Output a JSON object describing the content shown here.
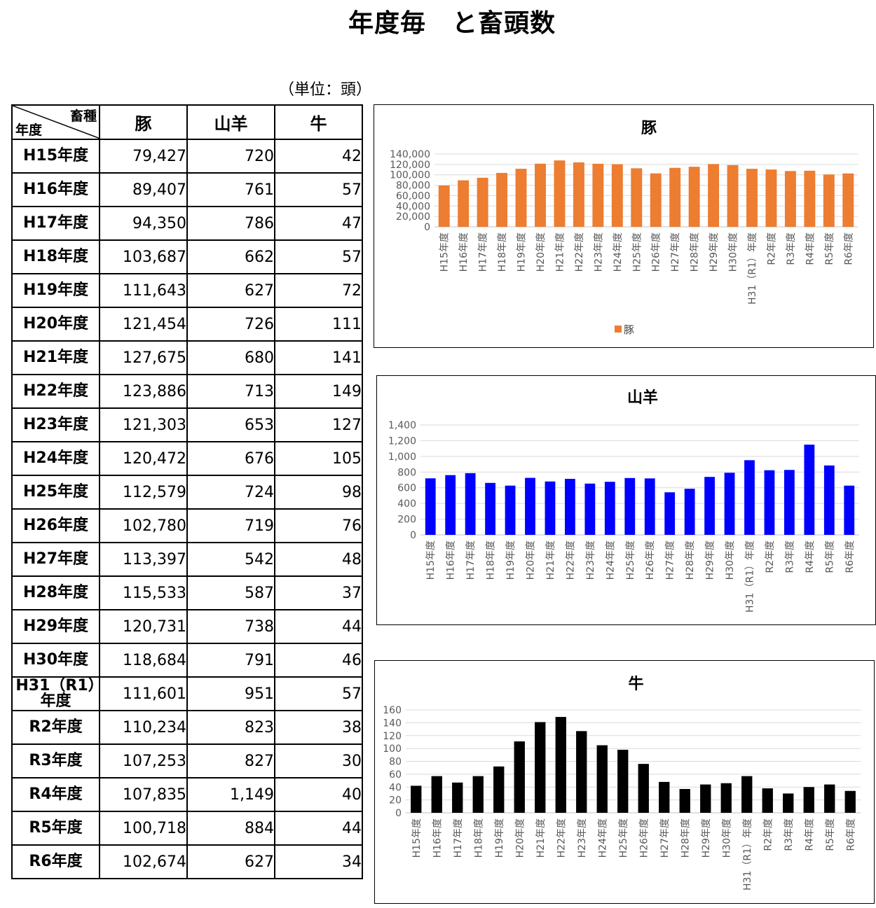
{
  "page": {
    "title": "年度毎　と畜頭数",
    "unit": "（単位：頭）"
  },
  "table": {
    "corner_top": "畜種",
    "corner_bottom": "年度",
    "headers": [
      "豚",
      "山羊",
      "牛"
    ],
    "rows": [
      {
        "year": "H15年度",
        "pig": "79,427",
        "goat": "720",
        "cattle": "42"
      },
      {
        "year": "H16年度",
        "pig": "89,407",
        "goat": "761",
        "cattle": "57"
      },
      {
        "year": "H17年度",
        "pig": "94,350",
        "goat": "786",
        "cattle": "47"
      },
      {
        "year": "H18年度",
        "pig": "103,687",
        "goat": "662",
        "cattle": "57"
      },
      {
        "year": "H19年度",
        "pig": "111,643",
        "goat": "627",
        "cattle": "72"
      },
      {
        "year": "H20年度",
        "pig": "121,454",
        "goat": "726",
        "cattle": "111"
      },
      {
        "year": "H21年度",
        "pig": "127,675",
        "goat": "680",
        "cattle": "141"
      },
      {
        "year": "H22年度",
        "pig": "123,886",
        "goat": "713",
        "cattle": "149"
      },
      {
        "year": "H23年度",
        "pig": "121,303",
        "goat": "653",
        "cattle": "127"
      },
      {
        "year": "H24年度",
        "pig": "120,472",
        "goat": "676",
        "cattle": "105"
      },
      {
        "year": "H25年度",
        "pig": "112,579",
        "goat": "724",
        "cattle": "98"
      },
      {
        "year": "H26年度",
        "pig": "102,780",
        "goat": "719",
        "cattle": "76"
      },
      {
        "year": "H27年度",
        "pig": "113,397",
        "goat": "542",
        "cattle": "48"
      },
      {
        "year": "H28年度",
        "pig": "115,533",
        "goat": "587",
        "cattle": "37"
      },
      {
        "year": "H29年度",
        "pig": "120,731",
        "goat": "738",
        "cattle": "44"
      },
      {
        "year": "H30年度",
        "pig": "118,684",
        "goat": "791",
        "cattle": "46"
      },
      {
        "year": "H31（R1）年度",
        "pig": "111,601",
        "goat": "951",
        "cattle": "57"
      },
      {
        "year": "R2年度",
        "pig": "110,234",
        "goat": "823",
        "cattle": "38"
      },
      {
        "year": "R3年度",
        "pig": "107,253",
        "goat": "827",
        "cattle": "30"
      },
      {
        "year": "R4年度",
        "pig": "107,835",
        "goat": "1,149",
        "cattle": "40"
      },
      {
        "year": "R5年度",
        "pig": "100,718",
        "goat": "884",
        "cattle": "44"
      },
      {
        "year": "R6年度",
        "pig": "102,674",
        "goat": "627",
        "cattle": "34"
      }
    ]
  },
  "chart_data": [
    {
      "type": "bar",
      "title": "豚",
      "categories": [
        "H15年度",
        "H16年度",
        "H17年度",
        "H18年度",
        "H19年度",
        "H20年度",
        "H21年度",
        "H22年度",
        "H23年度",
        "H24年度",
        "H25年度",
        "H26年度",
        "H27年度",
        "H28年度",
        "H29年度",
        "H30年度",
        "H31（R1）年度",
        "R2年度",
        "R3年度",
        "R4年度",
        "R5年度",
        "R6年度"
      ],
      "series": [
        {
          "name": "豚",
          "values": [
            79427,
            89407,
            94350,
            103687,
            111643,
            121454,
            127675,
            123886,
            121303,
            120472,
            112579,
            102780,
            113397,
            115533,
            120731,
            118684,
            111601,
            110234,
            107253,
            107835,
            100718,
            102674
          ]
        }
      ],
      "ylim": [
        0,
        140000
      ],
      "yticks": [
        0,
        20000,
        40000,
        60000,
        80000,
        100000,
        120000,
        140000
      ],
      "ytick_labels": [
        "0",
        "20,000",
        "40,000",
        "60,000",
        "80,000",
        "100,000",
        "120,000",
        "140,000"
      ],
      "grid": true,
      "legend": "bottom",
      "color": "#ed7d31"
    },
    {
      "type": "bar",
      "title": "山羊",
      "categories": [
        "H15年度",
        "H16年度",
        "H17年度",
        "H18年度",
        "H19年度",
        "H20年度",
        "H21年度",
        "H22年度",
        "H23年度",
        "H24年度",
        "H25年度",
        "H26年度",
        "H27年度",
        "H28年度",
        "H29年度",
        "H30年度",
        "H31（R1）年度",
        "R2年度",
        "R3年度",
        "R4年度",
        "R5年度",
        "R6年度"
      ],
      "series": [
        {
          "values": [
            720,
            761,
            786,
            662,
            627,
            726,
            680,
            713,
            653,
            676,
            724,
            719,
            542,
            587,
            738,
            791,
            951,
            823,
            827,
            1149,
            884,
            627
          ]
        }
      ],
      "ylim": [
        0,
        1400
      ],
      "yticks": [
        0,
        200,
        400,
        600,
        800,
        1000,
        1200,
        1400
      ],
      "ytick_labels": [
        "0",
        "200",
        "400",
        "600",
        "800",
        "1,000",
        "1,200",
        "1,400"
      ],
      "grid": true,
      "legend": "none",
      "color": "#0000ff"
    },
    {
      "type": "bar",
      "title": "牛",
      "categories": [
        "H15年度",
        "H16年度",
        "H17年度",
        "H18年度",
        "H19年度",
        "H20年度",
        "H21年度",
        "H22年度",
        "H23年度",
        "H24年度",
        "H25年度",
        "H26年度",
        "H27年度",
        "H28年度",
        "H29年度",
        "H30年度",
        "H31（R1）年度",
        "R2年度",
        "R3年度",
        "R4年度",
        "R5年度",
        "R6年度"
      ],
      "series": [
        {
          "values": [
            42,
            57,
            47,
            57,
            72,
            111,
            141,
            149,
            127,
            105,
            98,
            76,
            48,
            37,
            44,
            46,
            57,
            38,
            30,
            40,
            44,
            34
          ]
        }
      ],
      "ylim": [
        0,
        160
      ],
      "yticks": [
        0,
        20,
        40,
        60,
        80,
        100,
        120,
        140,
        160
      ],
      "ytick_labels": [
        "0",
        "20",
        "40",
        "60",
        "80",
        "100",
        "120",
        "140",
        "160"
      ],
      "grid": true,
      "legend": "none",
      "color": "#000000"
    }
  ]
}
